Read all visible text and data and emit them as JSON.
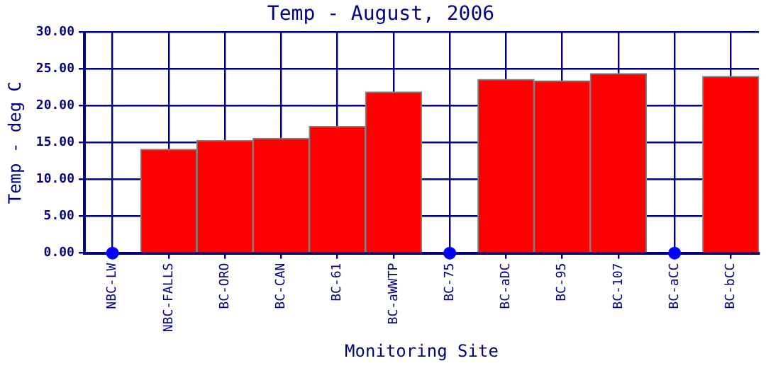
{
  "chart_data": {
    "type": "bar",
    "title": "Temp - August, 2006",
    "xlabel": "Monitoring Site",
    "ylabel": "Temp - deg C",
    "categories": [
      "NBC-LW",
      "NBC-FALLS",
      "BC-ORO",
      "BC-CAN",
      "BC-61",
      "BC-aWWTP",
      "BC-75",
      "BC-aDC",
      "BC-95",
      "BC-107",
      "BC-aCC",
      "BC-bCC"
    ],
    "series": [
      {
        "color": "#ff0000",
        "values": [
          null,
          14.1,
          15.3,
          15.6,
          17.2,
          21.9,
          null,
          23.6,
          23.4,
          24.4,
          null,
          24.0
        ]
      },
      {
        "type": "scatter",
        "color": "#0000ff",
        "marker": "circle",
        "x": [
          "NBC-LW",
          "BC-75",
          "BC-aCC"
        ],
        "values": [
          0,
          0,
          0
        ]
      }
    ],
    "ylim": [
      0,
      30
    ],
    "yticks": [
      {
        "value": 0,
        "label": "0.00"
      },
      {
        "value": 5,
        "label": "5.00"
      },
      {
        "value": 10,
        "label": "10.00"
      },
      {
        "value": 15,
        "label": "15.00"
      },
      {
        "value": 20,
        "label": "20.00"
      },
      {
        "value": 25,
        "label": "25.00"
      },
      {
        "value": 30,
        "label": "30.00"
      }
    ],
    "grid": true,
    "legend": false
  }
}
